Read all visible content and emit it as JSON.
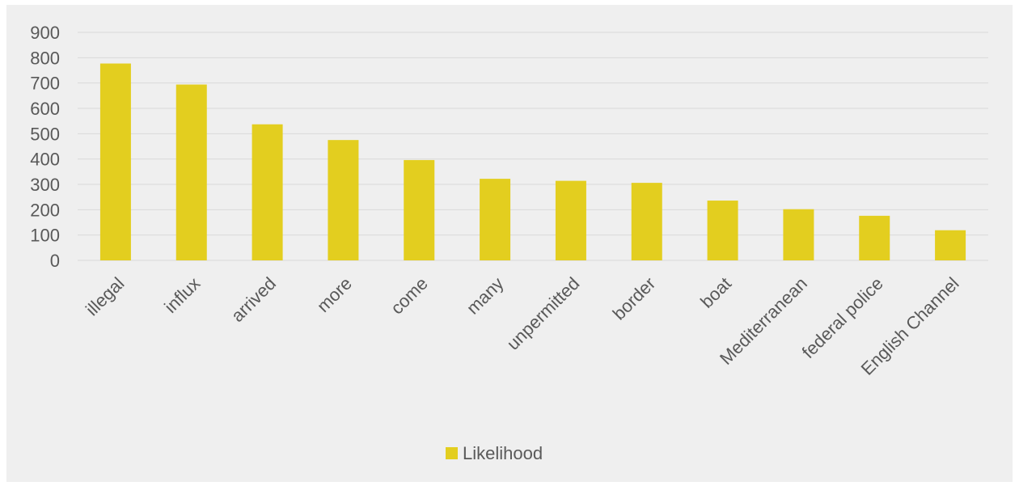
{
  "chart_data": {
    "type": "bar",
    "title": "",
    "xlabel": "",
    "ylabel": "",
    "categories": [
      "illegal",
      "influx",
      "arrived",
      "more",
      "come",
      "many",
      "unpermitted",
      "border",
      "boat",
      "Mediterranean",
      "federal police",
      "English Channel"
    ],
    "series": [
      {
        "name": "Likelihood",
        "color": "#E3CE1F",
        "values": [
          777,
          694,
          537,
          475,
          396,
          322,
          314,
          306,
          236,
          202,
          176,
          119
        ]
      }
    ],
    "ylim": [
      0,
      900
    ],
    "yticks": [
      0,
      100,
      200,
      300,
      400,
      500,
      600,
      700,
      800,
      900
    ],
    "grid": true,
    "legend_position": "bottom",
    "background": "#EFEFEF",
    "gridline_color": "#D9D9D9",
    "text_color": "#595959"
  }
}
